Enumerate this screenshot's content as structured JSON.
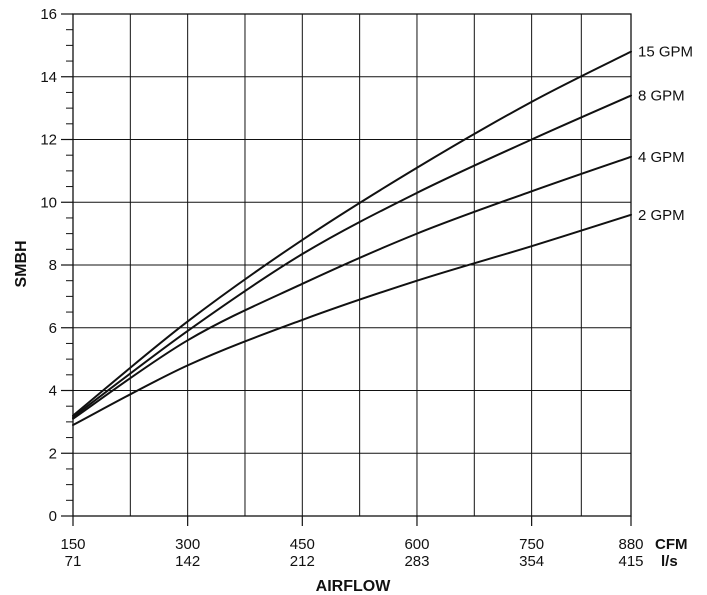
{
  "chart_data": {
    "type": "line",
    "title": "",
    "xlabel": "AIRFLOW",
    "ylabel": "SMBH",
    "x_unit_primary": "CFM",
    "x_unit_secondary": "l/s",
    "x_tick_values": [
      150,
      300,
      450,
      600,
      750,
      880
    ],
    "x_tick_labels_primary": [
      "150",
      "300",
      "450",
      "600",
      "750",
      "880"
    ],
    "x_tick_labels_secondary": [
      "71",
      "142",
      "212",
      "283",
      "354",
      "415"
    ],
    "xlim": [
      150,
      880
    ],
    "ylim": [
      0,
      16
    ],
    "y_ticks": [
      0,
      2,
      4,
      6,
      8,
      10,
      12,
      14,
      16
    ],
    "y_tick_labels": [
      "0",
      "2",
      "4",
      "6",
      "8",
      "10",
      "12",
      "14",
      "16"
    ],
    "grid": true,
    "legend": "labels at right end of each line",
    "series": [
      {
        "name": "15 GPM",
        "x": [
          150,
          300,
          450,
          600,
          750,
          880
        ],
        "y": [
          3.2,
          6.2,
          8.8,
          11.1,
          13.2,
          14.8
        ]
      },
      {
        "name": "8 GPM",
        "x": [
          150,
          300,
          450,
          600,
          750,
          880
        ],
        "y": [
          3.15,
          5.9,
          8.35,
          10.3,
          12.0,
          13.4
        ]
      },
      {
        "name": "4 GPM",
        "x": [
          150,
          300,
          450,
          600,
          750,
          880
        ],
        "y": [
          3.1,
          5.6,
          7.4,
          9.0,
          10.35,
          11.45
        ]
      },
      {
        "name": "2 GPM",
        "x": [
          150,
          300,
          450,
          600,
          750,
          880
        ],
        "y": [
          2.9,
          4.8,
          6.25,
          7.5,
          8.6,
          9.6
        ]
      }
    ]
  },
  "colors": {
    "line": "#111111",
    "grid": "#111111",
    "background": "#ffffff"
  }
}
